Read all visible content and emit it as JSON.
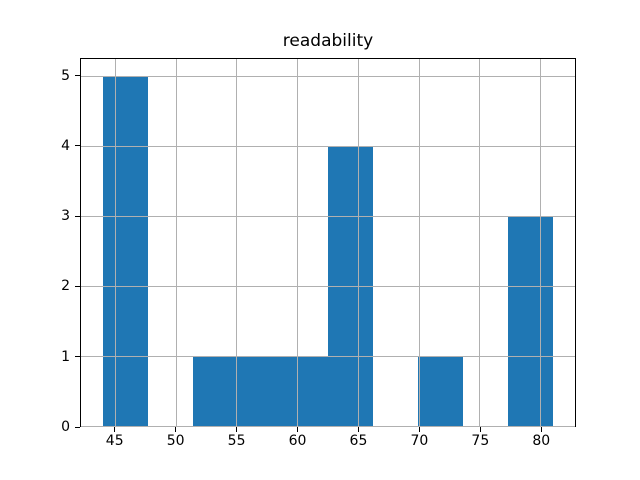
{
  "chart_data": {
    "type": "bar",
    "subtype": "histogram",
    "title": "readability",
    "xlabel": "",
    "ylabel": "",
    "bin_edges": [
      44.0,
      47.7,
      51.4,
      55.1,
      58.8,
      62.5,
      66.2,
      69.9,
      73.6,
      77.3,
      81.0
    ],
    "counts": [
      5,
      0,
      1,
      1,
      1,
      4,
      0,
      1,
      0,
      3
    ],
    "xticks": [
      45,
      50,
      55,
      60,
      65,
      70,
      75,
      80
    ],
    "yticks": [
      0,
      1,
      2,
      3,
      4,
      5
    ],
    "xlim": [
      42.15,
      82.85
    ],
    "ylim": [
      0,
      5.25
    ],
    "grid": true,
    "grid_on_top": true,
    "legend": null,
    "colors": {
      "bar": "#1f77b4",
      "grid": "#b0b0b0",
      "spine": "#000000",
      "text": "#000000",
      "background": "#ffffff"
    }
  }
}
